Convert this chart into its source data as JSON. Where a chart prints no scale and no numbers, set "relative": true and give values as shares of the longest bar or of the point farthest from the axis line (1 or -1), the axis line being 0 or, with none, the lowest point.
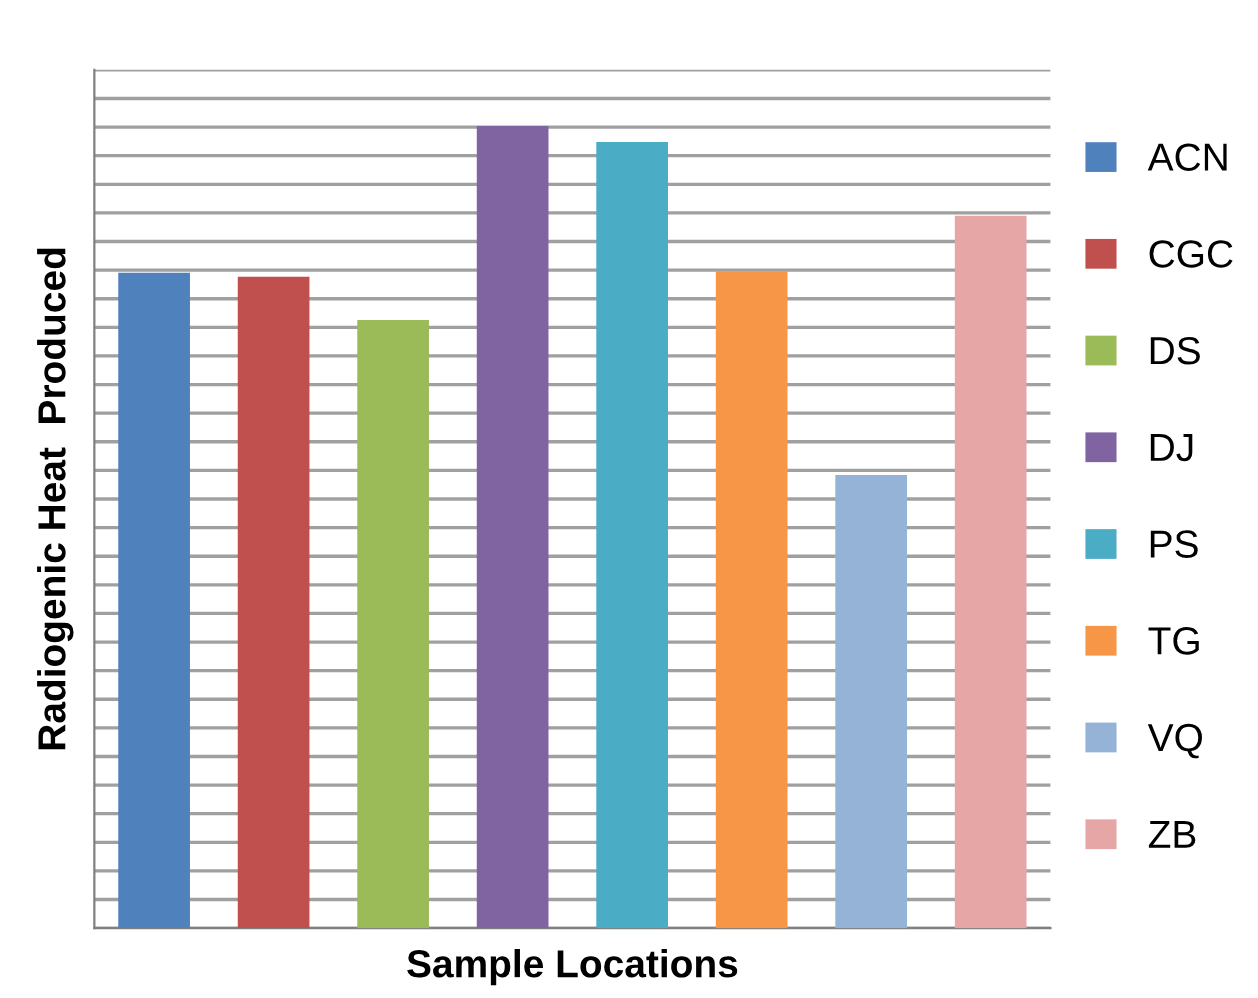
{
  "chart_data": {
    "type": "bar",
    "xlabel": "Sample Locations",
    "ylabel": "Radiogenic Heat  Produced",
    "relative": true,
    "grid": "y",
    "legend": "right",
    "stacked": true,
    "categories": [
      null,
      null,
      null,
      null,
      null,
      null,
      null,
      null
    ],
    "series": [
      {
        "name": "ACN",
        "color": "#4f81bd",
        "values": [
          0.817,
          null,
          null,
          null,
          null,
          null,
          null,
          null
        ]
      },
      {
        "name": "CGC",
        "color": "#c0504d",
        "values": [
          null,
          0.812,
          null,
          null,
          null,
          null,
          null,
          null
        ]
      },
      {
        "name": "DS",
        "color": "#9bbb59",
        "values": [
          null,
          null,
          0.758,
          null,
          null,
          null,
          null,
          null
        ]
      },
      {
        "name": "DJ",
        "color": "#8064a2",
        "values": [
          null,
          null,
          null,
          1,
          null,
          null,
          null,
          null
        ]
      },
      {
        "name": "PS",
        "color": "#4bacc6",
        "values": [
          null,
          null,
          null,
          null,
          0.98,
          null,
          null,
          null
        ]
      },
      {
        "name": "TG",
        "color": "#f79646",
        "values": [
          null,
          null,
          null,
          null,
          null,
          0.819,
          null,
          null
        ]
      },
      {
        "name": "VQ",
        "color": "#95b3d7",
        "values": [
          null,
          null,
          null,
          null,
          null,
          null,
          0.565,
          null
        ]
      },
      {
        "name": "ZB",
        "color": "#e6a6a6",
        "values": [
          null,
          null,
          null,
          null,
          null,
          null,
          null,
          0.888
        ]
      }
    ]
  }
}
